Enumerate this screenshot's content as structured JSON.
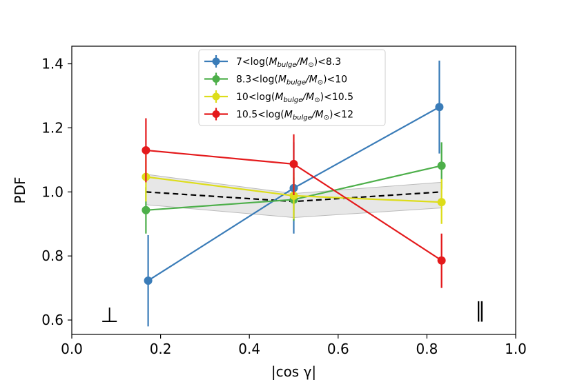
{
  "chart_data": {
    "type": "line",
    "xlabel": "|cos γ|",
    "ylabel": "PDF",
    "xlim": [
      0.0,
      1.0
    ],
    "ylim": [
      0.555,
      1.455
    ],
    "xticks": [
      "0.0",
      "0.2",
      "0.4",
      "0.6",
      "0.8",
      "1.0"
    ],
    "yticks": [
      "0.6",
      "0.8",
      "1.0",
      "1.2",
      "1.4"
    ],
    "legend_position": "top-center",
    "reference": {
      "x": [
        0.167,
        0.5,
        0.833
      ],
      "values": [
        1.0,
        0.97,
        1.0
      ],
      "band_low": [
        0.96,
        0.92,
        0.95
      ],
      "band_high": [
        1.055,
        0.995,
        1.03
      ],
      "line_color": "#000000",
      "band_color": "#d3d3d3"
    },
    "series": [
      {
        "name": "7<log(M_bulge/M_⊙)<8.3",
        "legend": {
          "pre": "7<log(",
          "m1": "M",
          "sub": "bulge",
          "slash": "/",
          "m2": "M",
          "sub2": "⊙",
          "post": ")<8.3"
        },
        "color": "#3a7cb8",
        "x": [
          0.172,
          0.5,
          0.828
        ],
        "values": [
          0.723,
          1.012,
          1.265
        ],
        "err_low": [
          0.58,
          0.87,
          1.12
        ],
        "err_high": [
          0.865,
          1.155,
          1.41
        ]
      },
      {
        "name": "8.3<log(M_bulge/M_⊙)<10",
        "legend": {
          "pre": "8.3<log(",
          "m1": "M",
          "sub": "bulge",
          "slash": "/",
          "m2": "M",
          "sub2": "⊙",
          "post": ")<10"
        },
        "color": "#4daf4a",
        "x": [
          0.167,
          0.5,
          0.833
        ],
        "values": [
          0.943,
          0.976,
          1.082
        ],
        "err_low": [
          0.87,
          0.91,
          1.01
        ],
        "err_high": [
          1.015,
          1.045,
          1.155
        ]
      },
      {
        "name": "10<log(M_bulge/M_⊙)<10.5",
        "legend": {
          "pre": "10<log(",
          "m1": "M",
          "sub": "bulge",
          "slash": "/",
          "m2": "M",
          "sub2": "⊙",
          "post": ")<10.5"
        },
        "color": "#dddd1a",
        "x": [
          0.167,
          0.5,
          0.833
        ],
        "values": [
          1.047,
          0.988,
          0.968
        ],
        "err_low": [
          0.97,
          0.915,
          0.9
        ],
        "err_high": [
          1.125,
          1.06,
          1.04
        ]
      },
      {
        "name": "10.5<log(M_bulge/M_⊙)<12",
        "legend": {
          "pre": "10.5<log(",
          "m1": "M",
          "sub": "bulge",
          "slash": "/",
          "m2": "M",
          "sub2": "⊙",
          "post": ")<12"
        },
        "color": "#e41a1c",
        "x": [
          0.167,
          0.5,
          0.833
        ],
        "values": [
          1.13,
          1.087,
          0.786
        ],
        "err_low": [
          1.03,
          0.99,
          0.7
        ],
        "err_high": [
          1.23,
          1.18,
          0.87
        ]
      }
    ],
    "annotations": [
      {
        "text": "⊥",
        "x": 0.085,
        "y": 0.615
      },
      {
        "text": "∥",
        "x": 0.92,
        "y": 0.63
      }
    ]
  }
}
